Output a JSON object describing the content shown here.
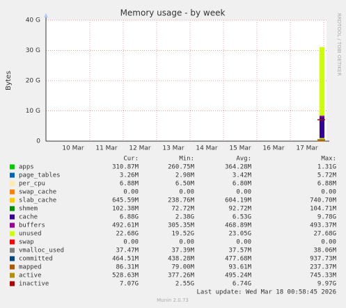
{
  "chart_data": {
    "type": "area",
    "title": "Memory usage - by week",
    "ylabel": "Bytes",
    "side_text": "RRDTOOL / TOBI OETIKER",
    "xticks": [
      "10 Mar",
      "11 Mar",
      "12 Mar",
      "13 Mar",
      "14 Mar",
      "15 Mar",
      "16 Mar",
      "17 Mar"
    ],
    "ylim": [
      0,
      40
    ],
    "yticks": [
      {
        "value": 0,
        "label": "0"
      },
      {
        "value": 10,
        "label": "10 G"
      },
      {
        "value": 20,
        "label": "20 G"
      },
      {
        "value": 30,
        "label": "30 G"
      },
      {
        "value": 40,
        "label": "40 G"
      }
    ],
    "grid": true,
    "columns": [
      "Cur:",
      "Min:",
      "Avg:",
      "Max:"
    ],
    "series": [
      {
        "name": "apps",
        "color": "#00cc00",
        "style": "area",
        "values": [
          0.31087
        ],
        "value_labels": [
          "310.87M"
        ],
        "min": "260.75M",
        "avg": "364.28M",
        "max": "1.31G"
      },
      {
        "name": "page_tables",
        "color": "#0066b3",
        "style": "area",
        "values": [
          0.00326
        ],
        "value_labels": [
          "3.26M"
        ],
        "min": "2.98M",
        "avg": "3.42M",
        "max": "5.72M"
      },
      {
        "name": "per_cpu",
        "color": "#ffe8a8",
        "style": "area",
        "values": [
          0.00688
        ],
        "value_labels": [
          "6.88M"
        ],
        "min": "6.50M",
        "avg": "6.80M",
        "max": "6.88M"
      },
      {
        "name": "swap_cache",
        "color": "#ff8000",
        "style": "area",
        "values": [
          0
        ],
        "value_labels": [
          "0.00"
        ],
        "min": "0.00",
        "avg": "0.00",
        "max": "0.00"
      },
      {
        "name": "slab_cache",
        "color": "#ffcc00",
        "style": "area",
        "values": [
          0.64559
        ],
        "value_labels": [
          "645.59M"
        ],
        "min": "238.76M",
        "avg": "604.19M",
        "max": "740.70M"
      },
      {
        "name": "shmem",
        "color": "#008f00",
        "style": "area",
        "values": [
          0.10238
        ],
        "value_labels": [
          "102.38M"
        ],
        "min": "72.72M",
        "avg": "92.72M",
        "max": "104.71M"
      },
      {
        "name": "cache",
        "color": "#330099",
        "style": "area",
        "values": [
          6.88
        ],
        "value_labels": [
          "6.88G"
        ],
        "min": "2.38G",
        "avg": "6.53G",
        "max": "9.78G"
      },
      {
        "name": "buffers",
        "color": "#990099",
        "style": "area",
        "values": [
          0.49261
        ],
        "value_labels": [
          "492.61M"
        ],
        "min": "305.35M",
        "avg": "468.89M",
        "max": "493.37M"
      },
      {
        "name": "unused",
        "color": "#ccff00",
        "style": "area",
        "values": [
          22.68
        ],
        "value_labels": [
          "22.68G"
        ],
        "min": "19.52G",
        "avg": "23.05G",
        "max": "27.68G"
      },
      {
        "name": "swap",
        "color": "#ff0000",
        "style": "area",
        "values": [
          0
        ],
        "value_labels": [
          "0.00"
        ],
        "min": "0.00",
        "avg": "0.00",
        "max": "0.00"
      },
      {
        "name": "vmalloc_used",
        "color": "#808080",
        "style": "line",
        "values": [
          0.03747
        ],
        "value_labels": [
          "37.47M"
        ],
        "min": "37.39M",
        "avg": "37.57M",
        "max": "38.06M"
      },
      {
        "name": "committed",
        "color": "#00487d",
        "style": "line",
        "values": [
          0.46451
        ],
        "value_labels": [
          "464.51M"
        ],
        "min": "438.28M",
        "avg": "477.68M",
        "max": "937.73M"
      },
      {
        "name": "mapped",
        "color": "#b35a00",
        "style": "line",
        "values": [
          0.08631
        ],
        "value_labels": [
          "86.31M"
        ],
        "min": "79.00M",
        "avg": "93.61M",
        "max": "237.37M"
      },
      {
        "name": "active",
        "color": "#b38f00",
        "style": "line",
        "values": [
          0.52863
        ],
        "value_labels": [
          "528.63M"
        ],
        "min": "377.26M",
        "avg": "495.24M",
        "max": "745.33M"
      },
      {
        "name": "inactive",
        "color": "#b30000",
        "style": "line",
        "values": [
          7.07
        ],
        "value_labels": [
          "7.07G"
        ],
        "min": "2.55G",
        "avg": "6.74G",
        "max": "9.97G"
      }
    ],
    "last_update": "Last update: Wed Mar 18 00:58:45 2026",
    "footer": "Munin 2.0.73"
  }
}
